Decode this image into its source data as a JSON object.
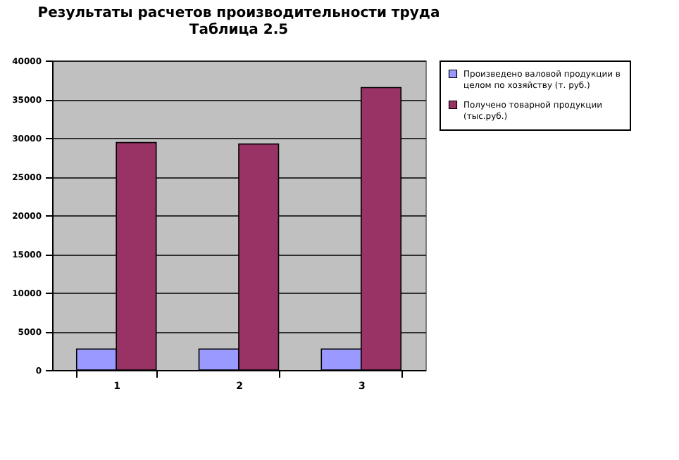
{
  "chart_data": {
    "type": "bar",
    "title": "Результаты расчетов производительности труда",
    "subtitle": "Таблица 2.5",
    "categories": [
      "1",
      "2",
      "3"
    ],
    "series": [
      {
        "name": "Произведено валовой продукции в целом по хозяйству (т. руб.)",
        "color": "#9999ff",
        "values": [
          2700,
          2700,
          2700
        ]
      },
      {
        "name": "Получено товарной продукции (тыс.руб.)",
        "color": "#993366",
        "values": [
          29400,
          29200,
          36500
        ]
      }
    ],
    "ylim": [
      0,
      40000
    ],
    "yticks": [
      0,
      5000,
      10000,
      15000,
      20000,
      25000,
      30000,
      35000,
      40000
    ],
    "grid": "y",
    "legend": "right"
  }
}
